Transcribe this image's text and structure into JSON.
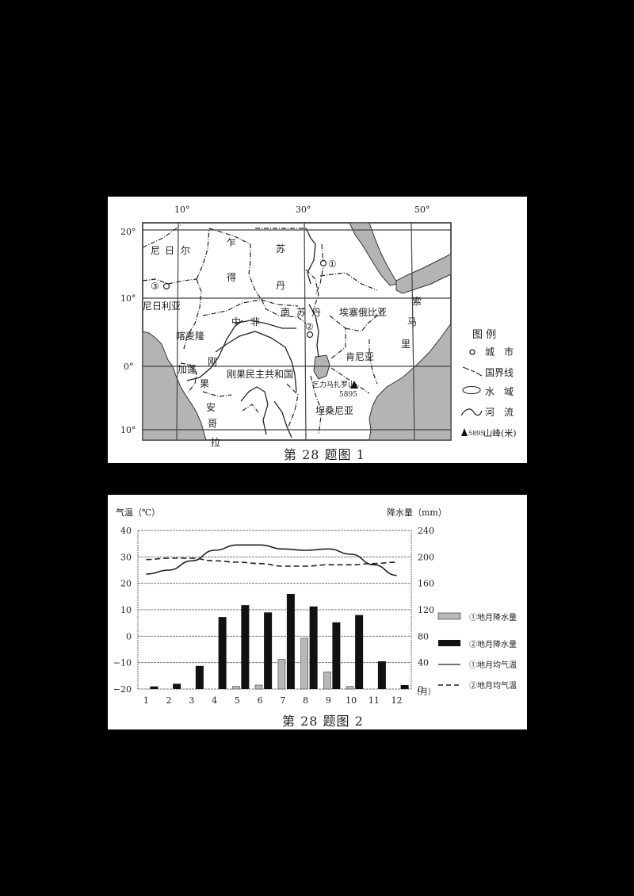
{
  "figure1": {
    "caption": "第 28 题图 1",
    "longitude_labels": [
      "10°",
      "30°",
      "50°"
    ],
    "latitude_labels": [
      "20°",
      "10°",
      "0°",
      "10°"
    ],
    "countries": [
      {
        "name": "尼日尔",
        "chars": [
          "尼",
          "日",
          "尔"
        ]
      },
      {
        "name": "乍得",
        "chars": [
          "乍",
          "得"
        ]
      },
      {
        "name": "苏丹",
        "chars": [
          "苏",
          "丹"
        ]
      },
      {
        "name": "尼日利亚"
      },
      {
        "name": "中非",
        "chars": [
          "中",
          "非"
        ]
      },
      {
        "name": "南苏丹",
        "chars": [
          "南",
          "苏",
          "丹"
        ]
      },
      {
        "name": "埃塞俄比亚"
      },
      {
        "name": "索马里",
        "chars": [
          "索",
          "马",
          "里"
        ]
      },
      {
        "name": "喀麦隆"
      },
      {
        "name": "加蓬"
      },
      {
        "name": "刚果",
        "chars": [
          "刚",
          "果"
        ]
      },
      {
        "name": "刚果民主共和国"
      },
      {
        "name": "肯尼亚"
      },
      {
        "name": "坦桑尼亚"
      },
      {
        "name": "安哥拉",
        "chars": [
          "安",
          "哥",
          "拉"
        ]
      }
    ],
    "places": {
      "site1": "①",
      "site2": "②",
      "site3": "③",
      "mountain_name": "乞力马扎罗山",
      "mountain_height": "5895"
    },
    "legend": {
      "title": "图 例",
      "items": [
        {
          "symbol": "city",
          "label": "城　市"
        },
        {
          "symbol": "border",
          "label": "国界线"
        },
        {
          "symbol": "water",
          "label": "水　域"
        },
        {
          "symbol": "river",
          "label": "河　流"
        },
        {
          "symbol": "peak",
          "label": "山峰(米)",
          "value": "5895"
        }
      ]
    },
    "colors": {
      "water": "#b4b4b4",
      "line": "#222222"
    }
  },
  "figure2": {
    "caption": "第 28 题图 2",
    "left_axis_title": "气温（℃）",
    "right_axis_title": "降水量（mm）",
    "month_unit": "（月）",
    "legend": [
      {
        "type": "bar-light",
        "label": "①地月降水量"
      },
      {
        "type": "bar-dark",
        "label": "②地月降水量"
      },
      {
        "type": "line-solid",
        "label": "①地月均气温"
      },
      {
        "type": "line-dashed",
        "label": "②地月均气温"
      }
    ]
  },
  "chart_data": {
    "type": "bar",
    "title": "第 28 题图 2",
    "xlabel": "（月）",
    "ylabel": "气温（℃）",
    "y2label": "降水量（mm）",
    "categories": [
      "1",
      "2",
      "3",
      "4",
      "5",
      "6",
      "7",
      "8",
      "9",
      "10",
      "11",
      "12"
    ],
    "ylim": [
      -20,
      40
    ],
    "yticks": [
      40,
      30,
      20,
      10,
      0,
      -10,
      -20
    ],
    "y2lim": [
      0,
      240
    ],
    "y2ticks": [
      240,
      200,
      160,
      120,
      80,
      40,
      0
    ],
    "grid": true,
    "legend_position": "right",
    "series": [
      {
        "name": "①地月降水量",
        "type": "bar",
        "axis": "right",
        "color": "#b8b8b8",
        "values": [
          0,
          0,
          0,
          0,
          4,
          6,
          45,
          77,
          26,
          4,
          0,
          0
        ]
      },
      {
        "name": "②地月降水量",
        "type": "bar",
        "axis": "right",
        "color": "#111111",
        "values": [
          4,
          8,
          35,
          109,
          127,
          116,
          144,
          125,
          101,
          112,
          42,
          6
        ]
      },
      {
        "name": "①地月均气温",
        "type": "line",
        "style": "solid",
        "axis": "left",
        "values": [
          23.5,
          25,
          28.5,
          32.5,
          34.5,
          34.5,
          33,
          32.5,
          33,
          31,
          27,
          23
        ]
      },
      {
        "name": "②地月均气温",
        "type": "line",
        "style": "dashed",
        "axis": "left",
        "values": [
          29,
          29.5,
          29.5,
          28.5,
          28,
          27.5,
          26.5,
          26.5,
          27,
          27,
          27.5,
          28
        ]
      }
    ]
  }
}
